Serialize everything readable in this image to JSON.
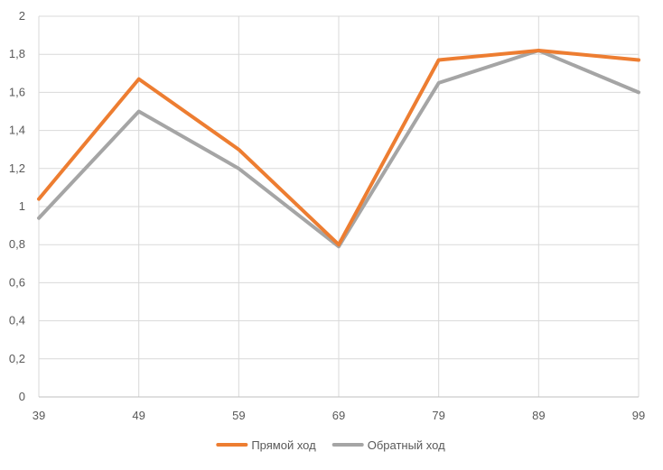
{
  "chart_data": {
    "type": "line",
    "title": "",
    "xlabel": "",
    "ylabel": "",
    "x": [
      "39",
      "49",
      "59",
      "69",
      "79",
      "89",
      "99"
    ],
    "ylim": [
      0,
      2
    ],
    "yticks": [
      "0",
      "0,2",
      "0,4",
      "0,6",
      "0,8",
      "1",
      "1,2",
      "1,4",
      "1,6",
      "1,8",
      "2"
    ],
    "grid": "vertical-and-horizontal",
    "legend_position": "bottom",
    "series": [
      {
        "name": "Прямой ход",
        "color": "#ed7d31",
        "values": [
          1.04,
          1.67,
          1.3,
          0.8,
          1.77,
          1.82,
          1.77
        ]
      },
      {
        "name": "Обратный ход",
        "color": "#a5a5a5",
        "values": [
          0.94,
          1.5,
          1.2,
          0.79,
          1.65,
          1.82,
          1.6
        ]
      }
    ]
  }
}
